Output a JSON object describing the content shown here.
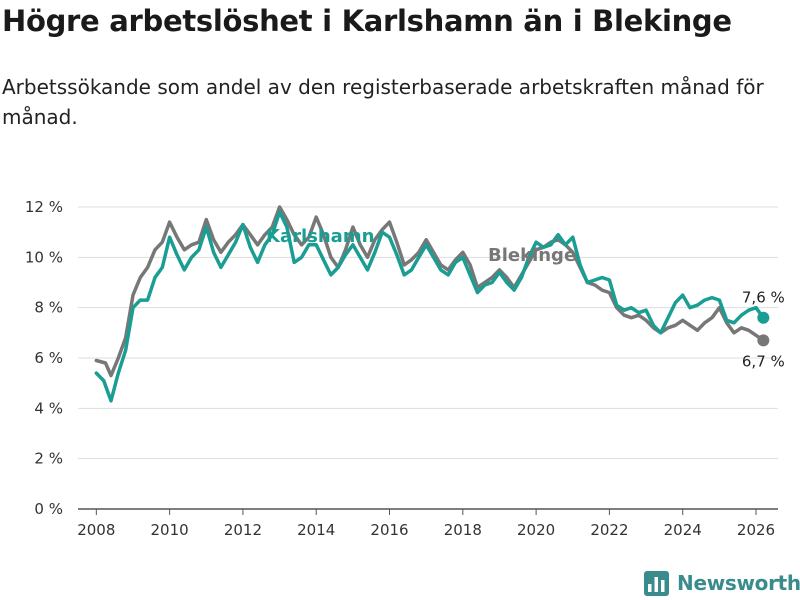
{
  "chart_data": {
    "type": "line",
    "title": "Högre arbetslöshet i Karlshamn än i Blekinge",
    "subtitle": "Arbetssökande som andel av den registerbaserade arbetskraften månad för månad.",
    "xlabel": "",
    "ylabel": "",
    "xlim": [
      2007.5,
      2026.6
    ],
    "ylim": [
      0,
      12
    ],
    "y_ticks": [
      0,
      2,
      4,
      6,
      8,
      10,
      12
    ],
    "y_tick_labels": [
      "0 %",
      "2 %",
      "4 %",
      "6 %",
      "8 %",
      "10 %",
      "12 %"
    ],
    "x_ticks": [
      2008,
      2010,
      2012,
      2014,
      2016,
      2018,
      2020,
      2022,
      2024,
      2026
    ],
    "x_tick_labels": [
      "2008",
      "2010",
      "2012",
      "2014",
      "2016",
      "2018",
      "2020",
      "2022",
      "2024",
      "2026"
    ],
    "grid": true,
    "series": [
      {
        "name": "Blekinge",
        "color": "#777777",
        "points": [
          [
            2008.0,
            5.9
          ],
          [
            2008.25,
            5.8
          ],
          [
            2008.4,
            5.3
          ],
          [
            2008.6,
            6.0
          ],
          [
            2008.8,
            6.8
          ],
          [
            2009.0,
            8.5
          ],
          [
            2009.2,
            9.2
          ],
          [
            2009.4,
            9.6
          ],
          [
            2009.6,
            10.3
          ],
          [
            2009.8,
            10.6
          ],
          [
            2010.0,
            11.4
          ],
          [
            2010.2,
            10.8
          ],
          [
            2010.4,
            10.3
          ],
          [
            2010.6,
            10.5
          ],
          [
            2010.8,
            10.6
          ],
          [
            2011.0,
            11.5
          ],
          [
            2011.2,
            10.7
          ],
          [
            2011.4,
            10.2
          ],
          [
            2011.6,
            10.6
          ],
          [
            2011.8,
            10.9
          ],
          [
            2012.0,
            11.3
          ],
          [
            2012.2,
            10.9
          ],
          [
            2012.4,
            10.5
          ],
          [
            2012.6,
            10.9
          ],
          [
            2012.8,
            11.2
          ],
          [
            2013.0,
            12.0
          ],
          [
            2013.2,
            11.5
          ],
          [
            2013.4,
            10.9
          ],
          [
            2013.6,
            10.5
          ],
          [
            2013.8,
            10.8
          ],
          [
            2014.0,
            11.6
          ],
          [
            2014.2,
            10.9
          ],
          [
            2014.4,
            10.0
          ],
          [
            2014.6,
            9.6
          ],
          [
            2014.8,
            10.3
          ],
          [
            2015.0,
            11.2
          ],
          [
            2015.2,
            10.5
          ],
          [
            2015.4,
            10.0
          ],
          [
            2015.6,
            10.7
          ],
          [
            2015.8,
            11.1
          ],
          [
            2016.0,
            11.4
          ],
          [
            2016.2,
            10.6
          ],
          [
            2016.4,
            9.7
          ],
          [
            2016.6,
            9.9
          ],
          [
            2016.8,
            10.2
          ],
          [
            2017.0,
            10.7
          ],
          [
            2017.2,
            10.2
          ],
          [
            2017.4,
            9.7
          ],
          [
            2017.6,
            9.5
          ],
          [
            2017.8,
            9.9
          ],
          [
            2018.0,
            10.2
          ],
          [
            2018.2,
            9.7
          ],
          [
            2018.4,
            8.8
          ],
          [
            2018.6,
            9.0
          ],
          [
            2018.8,
            9.2
          ],
          [
            2019.0,
            9.5
          ],
          [
            2019.2,
            9.2
          ],
          [
            2019.4,
            8.8
          ],
          [
            2019.6,
            9.3
          ],
          [
            2019.8,
            9.8
          ],
          [
            2020.0,
            10.3
          ],
          [
            2020.2,
            10.4
          ],
          [
            2020.4,
            10.6
          ],
          [
            2020.6,
            10.7
          ],
          [
            2020.8,
            10.5
          ],
          [
            2021.0,
            10.2
          ],
          [
            2021.2,
            9.6
          ],
          [
            2021.4,
            9.0
          ],
          [
            2021.6,
            8.9
          ],
          [
            2021.8,
            8.7
          ],
          [
            2022.0,
            8.6
          ],
          [
            2022.2,
            8.0
          ],
          [
            2022.4,
            7.7
          ],
          [
            2022.6,
            7.6
          ],
          [
            2022.8,
            7.7
          ],
          [
            2023.0,
            7.5
          ],
          [
            2023.2,
            7.2
          ],
          [
            2023.4,
            7.0
          ],
          [
            2023.6,
            7.2
          ],
          [
            2023.8,
            7.3
          ],
          [
            2024.0,
            7.5
          ],
          [
            2024.2,
            7.3
          ],
          [
            2024.4,
            7.1
          ],
          [
            2024.6,
            7.4
          ],
          [
            2024.8,
            7.6
          ],
          [
            2025.0,
            8.0
          ],
          [
            2025.2,
            7.4
          ],
          [
            2025.4,
            7.0
          ],
          [
            2025.6,
            7.2
          ],
          [
            2025.8,
            7.1
          ],
          [
            2026.0,
            6.9
          ],
          [
            2026.2,
            6.7
          ]
        ]
      },
      {
        "name": "Karlshamn",
        "color": "#1a9e94",
        "points": [
          [
            2008.0,
            5.4
          ],
          [
            2008.2,
            5.1
          ],
          [
            2008.4,
            4.3
          ],
          [
            2008.6,
            5.4
          ],
          [
            2008.8,
            6.3
          ],
          [
            2009.0,
            8.0
          ],
          [
            2009.2,
            8.3
          ],
          [
            2009.4,
            8.3
          ],
          [
            2009.6,
            9.2
          ],
          [
            2009.8,
            9.6
          ],
          [
            2010.0,
            10.8
          ],
          [
            2010.2,
            10.1
          ],
          [
            2010.4,
            9.5
          ],
          [
            2010.6,
            10.0
          ],
          [
            2010.8,
            10.3
          ],
          [
            2011.0,
            11.2
          ],
          [
            2011.2,
            10.2
          ],
          [
            2011.4,
            9.6
          ],
          [
            2011.6,
            10.1
          ],
          [
            2011.8,
            10.6
          ],
          [
            2012.0,
            11.3
          ],
          [
            2012.2,
            10.4
          ],
          [
            2012.4,
            9.8
          ],
          [
            2012.6,
            10.5
          ],
          [
            2012.8,
            10.9
          ],
          [
            2013.0,
            11.8
          ],
          [
            2013.2,
            11.2
          ],
          [
            2013.4,
            9.8
          ],
          [
            2013.6,
            10.0
          ],
          [
            2013.8,
            10.5
          ],
          [
            2014.0,
            10.5
          ],
          [
            2014.2,
            9.9
          ],
          [
            2014.4,
            9.3
          ],
          [
            2014.6,
            9.6
          ],
          [
            2014.8,
            10.1
          ],
          [
            2015.0,
            10.5
          ],
          [
            2015.2,
            10.0
          ],
          [
            2015.4,
            9.5
          ],
          [
            2015.6,
            10.2
          ],
          [
            2015.8,
            11.0
          ],
          [
            2016.0,
            10.8
          ],
          [
            2016.2,
            10.1
          ],
          [
            2016.4,
            9.3
          ],
          [
            2016.6,
            9.5
          ],
          [
            2016.8,
            10.0
          ],
          [
            2017.0,
            10.5
          ],
          [
            2017.2,
            10.0
          ],
          [
            2017.4,
            9.5
          ],
          [
            2017.6,
            9.3
          ],
          [
            2017.8,
            9.8
          ],
          [
            2018.0,
            10.0
          ],
          [
            2018.2,
            9.3
          ],
          [
            2018.4,
            8.6
          ],
          [
            2018.6,
            8.9
          ],
          [
            2018.8,
            9.0
          ],
          [
            2019.0,
            9.4
          ],
          [
            2019.2,
            9.0
          ],
          [
            2019.4,
            8.7
          ],
          [
            2019.6,
            9.2
          ],
          [
            2019.8,
            10.0
          ],
          [
            2020.0,
            10.6
          ],
          [
            2020.2,
            10.4
          ],
          [
            2020.4,
            10.5
          ],
          [
            2020.6,
            10.9
          ],
          [
            2020.8,
            10.5
          ],
          [
            2021.0,
            10.8
          ],
          [
            2021.2,
            9.7
          ],
          [
            2021.4,
            9.0
          ],
          [
            2021.6,
            9.1
          ],
          [
            2021.8,
            9.2
          ],
          [
            2022.0,
            9.1
          ],
          [
            2022.2,
            8.1
          ],
          [
            2022.4,
            7.9
          ],
          [
            2022.6,
            8.0
          ],
          [
            2022.8,
            7.8
          ],
          [
            2023.0,
            7.9
          ],
          [
            2023.2,
            7.3
          ],
          [
            2023.4,
            7.0
          ],
          [
            2023.6,
            7.6
          ],
          [
            2023.8,
            8.2
          ],
          [
            2024.0,
            8.5
          ],
          [
            2024.2,
            8.0
          ],
          [
            2024.4,
            8.1
          ],
          [
            2024.6,
            8.3
          ],
          [
            2024.8,
            8.4
          ],
          [
            2025.0,
            8.3
          ],
          [
            2025.2,
            7.5
          ],
          [
            2025.4,
            7.4
          ],
          [
            2025.6,
            7.7
          ],
          [
            2025.8,
            7.9
          ],
          [
            2026.0,
            8.0
          ],
          [
            2026.2,
            7.6
          ]
        ]
      }
    ],
    "end_labels": [
      "6,7 %",
      "7,6 %"
    ]
  },
  "series_labels": {
    "karlshamn": "Karlshamn",
    "blekinge": "Blekinge"
  },
  "brand": {
    "name": "Newsworthy",
    "icon": "bar-chart-icon",
    "color": "#3a8c8c"
  }
}
